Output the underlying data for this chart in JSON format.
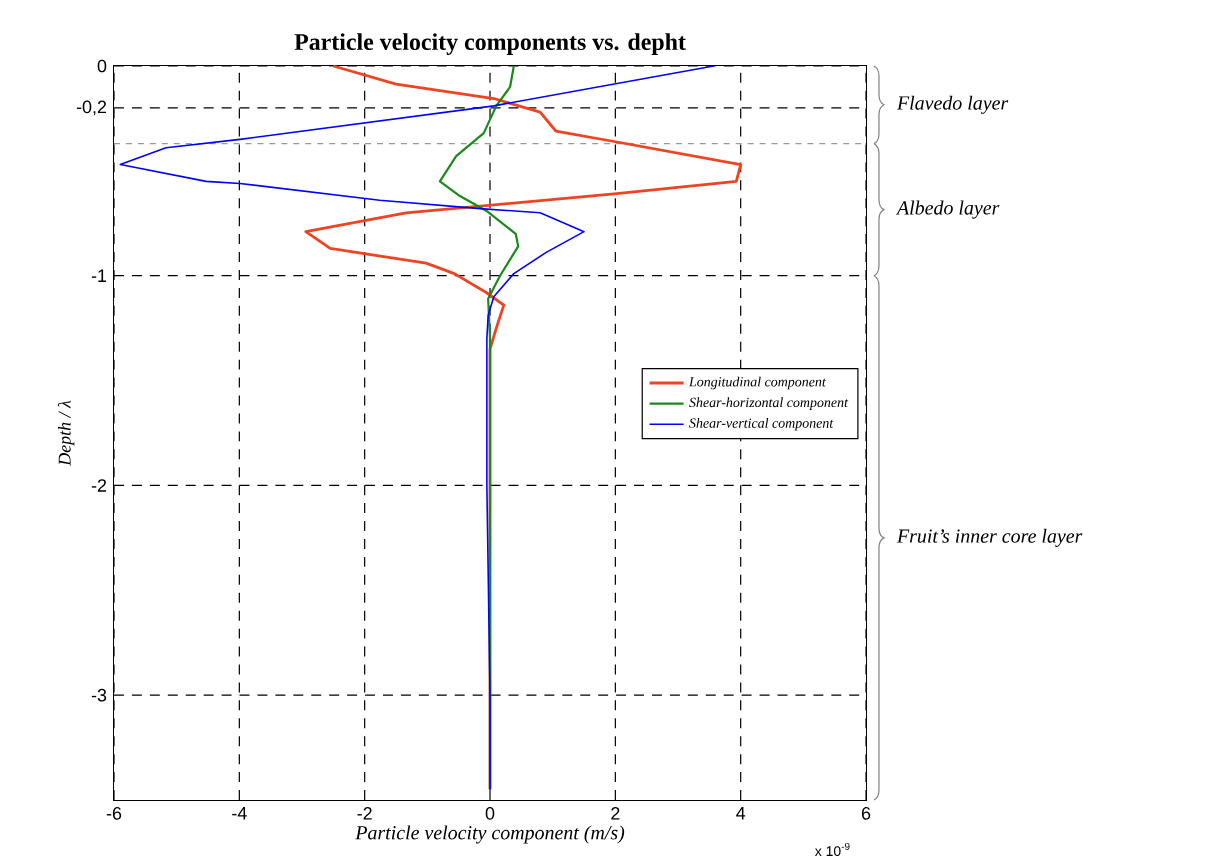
{
  "chart_data": {
    "type": "line",
    "title": "Particle velocity components vs. depht",
    "xlabel": "Particle velocity component (m/s)",
    "ylabel": "Depth / λ",
    "xlim": [
      -6,
      6
    ],
    "xticks": [
      -6,
      -4,
      -2,
      0,
      2,
      4,
      6
    ],
    "ylim": [
      -3.5,
      0
    ],
    "yticks": [
      -3,
      -2,
      -1,
      {
        "value": -0.2,
        "label": "-0,2"
      },
      0
    ],
    "grid": true,
    "legend": "right",
    "series": [
      {
        "name": "Longitudinal component",
        "color": "#ee4422",
        "x": [
          -2.5,
          -1.5,
          0.06,
          0.8,
          1.05,
          1.98,
          4.0,
          3.93,
          1.98,
          -1.34,
          -2.94,
          -2.55,
          -1.02,
          -0.57,
          -0.06,
          0.22,
          0.1,
          0,
          0
        ],
        "values": [
          0,
          -0.086,
          -0.155,
          -0.22,
          -0.31,
          -0.36,
          -0.47,
          -0.55,
          -0.61,
          -0.7,
          -0.79,
          -0.87,
          -0.94,
          -0.99,
          -1.08,
          -1.14,
          -1.25,
          -1.35,
          -3.45
        ]
      },
      {
        "name": "Shear-horizontal component",
        "color": "#1a8a1a",
        "x": [
          0.38,
          0.32,
          0.1,
          -0.1,
          -0.54,
          -0.8,
          -0.48,
          -0.06,
          0.41,
          0.45,
          0.16,
          -0.03,
          0,
          0
        ],
        "values": [
          0,
          -0.1,
          -0.19,
          -0.32,
          -0.43,
          -0.55,
          -0.62,
          -0.69,
          -0.8,
          -0.86,
          -1.0,
          -1.11,
          -1.3,
          -3.45
        ]
      },
      {
        "name": "Shear-vertical component",
        "color": "#0000ff",
        "x": [
          3.57,
          0.06,
          -3.99,
          -5.17,
          -5.9,
          -4.53,
          -3.99,
          -1.76,
          -0.16,
          0.8,
          1.5,
          0.89,
          0.38,
          0.06,
          -0.03,
          -0.05,
          -0.05,
          0,
          0
        ],
        "values": [
          0,
          -0.19,
          -0.35,
          -0.39,
          -0.47,
          -0.55,
          -0.56,
          -0.64,
          -0.68,
          -0.7,
          -0.79,
          -0.89,
          -0.99,
          -1.1,
          -1.19,
          -1.3,
          -2.0,
          -3.0,
          -3.45
        ]
      }
    ],
    "ref_lines": [
      {
        "axis": "y",
        "value": -0.37,
        "color": "#999999",
        "line_style": "dashed"
      }
    ],
    "bands": [
      {
        "axis": "y",
        "from": 0,
        "to": -0.37,
        "label": "Flavedo layer",
        "color": "#ffffff"
      },
      {
        "axis": "y",
        "from": -0.37,
        "to": -1,
        "label": "Albedo layer",
        "color": "#ffffff"
      },
      {
        "axis": "y",
        "from": -1,
        "to": -3.5,
        "label": "Fruit’s inner core layer",
        "color": "#ffffff"
      }
    ],
    "annotations": [
      "x 10$^{-9}$"
    ]
  }
}
